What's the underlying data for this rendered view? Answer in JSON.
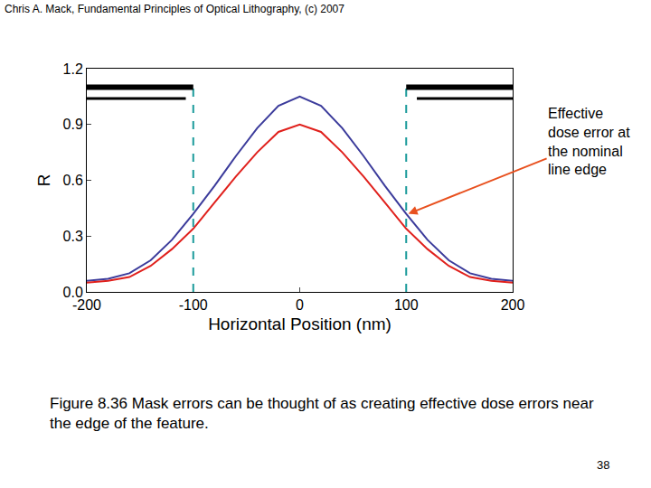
{
  "header": "Chris A. Mack, Fundamental Principles of Optical Lithography, (c) 2007",
  "caption": [
    "Figure 8.36  Mask errors can be thought of as creating effective dose errors near",
    "the edge of the feature."
  ],
  "page_number": "38",
  "chart_data": {
    "type": "line",
    "x_label": "Horizontal Position (nm)",
    "y_label": "R",
    "x": [
      -200,
      -180,
      -160,
      -140,
      -120,
      -100,
      -80,
      -60,
      -40,
      -20,
      0,
      20,
      40,
      60,
      80,
      100,
      120,
      140,
      160,
      180,
      200
    ],
    "series": [
      {
        "color": "#3b3b9b",
        "values": [
          0.06,
          0.07,
          0.1,
          0.17,
          0.28,
          0.42,
          0.57,
          0.73,
          0.88,
          1.0,
          1.05,
          1.0,
          0.88,
          0.73,
          0.57,
          0.42,
          0.28,
          0.17,
          0.1,
          0.07,
          0.06
        ]
      },
      {
        "color": "#e0201c",
        "values": [
          0.05,
          0.06,
          0.08,
          0.14,
          0.23,
          0.34,
          0.48,
          0.62,
          0.75,
          0.86,
          0.9,
          0.86,
          0.75,
          0.62,
          0.48,
          0.34,
          0.23,
          0.14,
          0.08,
          0.06,
          0.05
        ]
      }
    ],
    "xlim": [
      -200,
      200
    ],
    "xticks": [
      -200,
      -100,
      0,
      100,
      200
    ],
    "ylim": [
      0,
      1.2
    ],
    "yticks": [
      {
        "value": 0,
        "label": "0.0"
      },
      {
        "value": 0.3,
        "label": "0.3"
      },
      {
        "value": 0.6,
        "label": "0.6"
      },
      {
        "value": 0.9,
        "label": "0.9"
      },
      {
        "value": 1.2,
        "label": "1.2"
      }
    ],
    "grid": false,
    "dashed_lines": {
      "x": [
        -100,
        100
      ],
      "y": [
        0,
        1.1
      ],
      "color": "#1a9a9a"
    },
    "mask_bars": {
      "thick": [
        [
          -200,
          -100,
          1.1
        ],
        [
          100,
          200,
          1.1
        ]
      ],
      "thin": [
        [
          -200,
          -107,
          1.04
        ],
        [
          110,
          200,
          1.04
        ]
      ]
    },
    "annotation": {
      "lines": [
        "Effective",
        "dose error at",
        "the nominal",
        "line edge"
      ],
      "x": 102,
      "y": 0.42,
      "color": "#e8501e"
    }
  }
}
